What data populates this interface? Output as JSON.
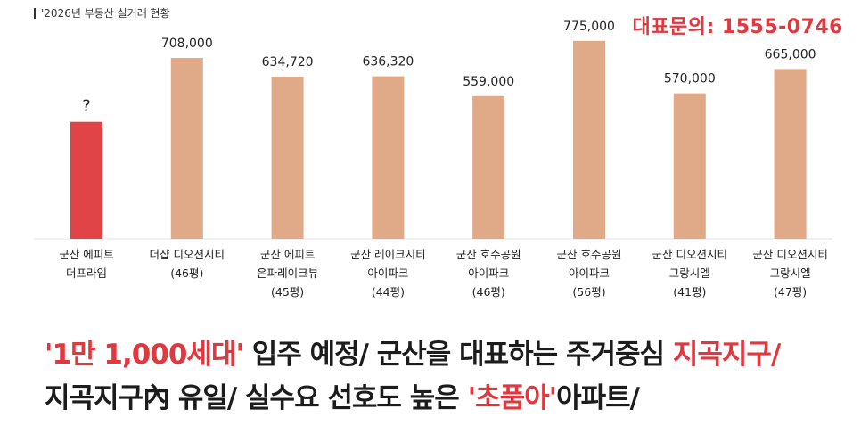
{
  "header": {
    "subtitle": "'2026년 부동산 실거래 현황",
    "contact": "대표문의: 1555-0746"
  },
  "colors": {
    "highlight": "#e04446",
    "bar": "#e0aa88",
    "accent": "#e0383e"
  },
  "chart_data": {
    "type": "bar",
    "categories": [
      [
        "군산 에피트",
        "더프라임"
      ],
      [
        "더샵 디오션시티",
        "(46평)"
      ],
      [
        "군산 에피트",
        "은파레이크뷰",
        "(45평)"
      ],
      [
        "군산 레이크시티",
        "아이파크",
        "(44평)"
      ],
      [
        "군산 호수공원",
        "아이파크",
        "(46평)"
      ],
      [
        "군산 호수공원",
        "아이파크",
        "(56평)"
      ],
      [
        "군산 디오션시티",
        "그랑시엘",
        "(41평)"
      ],
      [
        "군산 디오션시티",
        "그랑시엘",
        "(47평)"
      ]
    ],
    "values": [
      null,
      708000,
      634720,
      636320,
      559000,
      775000,
      570000,
      665000
    ],
    "labels": [
      "?",
      "708,000",
      "634,720",
      "636,320",
      "559,000",
      "775,000",
      "570,000",
      "665,000"
    ],
    "placeholder_value": 458000,
    "highlight_index": 0,
    "ylim": [
      0,
      900000
    ],
    "grid": false,
    "legend": "none"
  },
  "headline": {
    "line1": [
      {
        "text": "'1만 1,000세대'",
        "style": "red"
      },
      {
        "text": " 입주 예정/ 군산을 대표하는 주거중심 ",
        "style": "dark"
      },
      {
        "text": "지곡지구/",
        "style": "red"
      }
    ],
    "line2": [
      {
        "text": "지곡지구內 유일/ 실수요 선호도 높은 ",
        "style": "dark"
      },
      {
        "text": "'초품아'",
        "style": "red"
      },
      {
        "text": "아파트/",
        "style": "dark"
      }
    ]
  }
}
